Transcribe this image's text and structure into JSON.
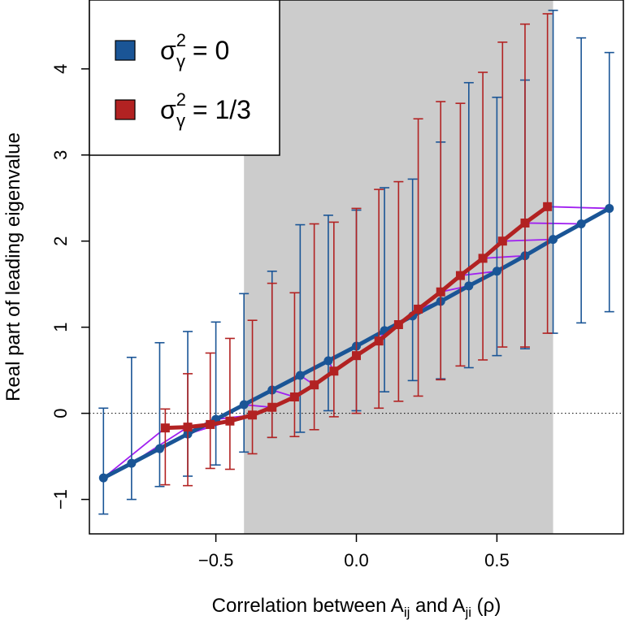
{
  "chart_data": {
    "type": "line",
    "xlabel": {
      "prefix": "Correlation between A",
      "sub1": "ij",
      "mid": " and A",
      "sub2": "ji",
      "suffix": " (ρ)"
    },
    "ylabel": "Real part of leading eigenvalue",
    "xlim": [
      -0.95,
      0.95
    ],
    "ylim": [
      -1.4,
      4.8
    ],
    "x_ticks": [
      -0.5,
      0.0,
      0.5
    ],
    "x_tick_labels": [
      "−0.5",
      "0.0",
      "0.5"
    ],
    "y_ticks": [
      -1,
      0,
      1,
      2,
      3,
      4
    ],
    "y_tick_labels": [
      "−1",
      "0",
      "1",
      "2",
      "3",
      "4"
    ],
    "shaded_region": {
      "x_range": [
        -0.4,
        0.7
      ],
      "color": "#cccccc"
    },
    "reference_line": {
      "y": 0,
      "style": "dotted"
    },
    "grid": false,
    "legend_position": "top-left",
    "connector_color": "#a020f0",
    "series": [
      {
        "name_base": "σ",
        "name_sup": "2",
        "name_sub": "γ",
        "name_rest": " = 0",
        "color": "#1a5596",
        "marker": "circle",
        "x": [
          -0.9,
          -0.8,
          -0.7,
          -0.6,
          -0.5,
          -0.4,
          -0.3,
          -0.2,
          -0.1,
          0.0,
          0.1,
          0.2,
          0.3,
          0.4,
          0.5,
          0.6,
          0.7,
          0.8,
          0.9
        ],
        "y": [
          -0.75,
          -0.58,
          -0.41,
          -0.24,
          -0.07,
          0.1,
          0.27,
          0.44,
          0.61,
          0.78,
          0.96,
          1.13,
          1.3,
          1.48,
          1.65,
          1.83,
          2.02,
          2.2,
          2.38
        ],
        "lower": [
          -1.17,
          -1.0,
          -0.85,
          -0.73,
          -0.6,
          -0.45,
          -0.28,
          -0.22,
          0.03,
          0.03,
          0.25,
          0.38,
          0.4,
          0.53,
          0.67,
          0.75,
          0.93,
          1.05,
          1.18
        ],
        "upper": [
          0.06,
          0.65,
          0.82,
          0.95,
          1.06,
          1.39,
          1.65,
          2.19,
          2.3,
          2.36,
          2.62,
          2.72,
          3.15,
          3.84,
          3.67,
          3.87,
          4.68,
          4.36,
          4.19
        ]
      },
      {
        "name_base": "σ",
        "name_sup": "2",
        "name_sub": "γ",
        "name_rest": " = 1/3",
        "color": "#b22222",
        "marker": "square",
        "x": [
          -0.68,
          -0.6,
          -0.52,
          -0.45,
          -0.37,
          -0.3,
          -0.22,
          -0.15,
          -0.08,
          0.0,
          0.08,
          0.15,
          0.22,
          0.3,
          0.37,
          0.45,
          0.52,
          0.6,
          0.68
        ],
        "y": [
          -0.17,
          -0.16,
          -0.13,
          -0.09,
          -0.02,
          0.07,
          0.19,
          0.33,
          0.49,
          0.67,
          0.84,
          1.03,
          1.21,
          1.41,
          1.6,
          1.8,
          2.0,
          2.21,
          2.4
        ],
        "lower": [
          -0.83,
          -0.84,
          -0.64,
          -0.65,
          -0.47,
          -0.28,
          -0.27,
          -0.19,
          -0.04,
          0.0,
          0.06,
          0.14,
          0.2,
          0.39,
          0.55,
          0.62,
          0.77,
          0.77,
          0.93
        ],
        "upper": [
          0.05,
          0.46,
          0.7,
          0.87,
          1.08,
          1.51,
          1.4,
          2.2,
          2.22,
          2.38,
          2.6,
          2.69,
          3.42,
          3.62,
          3.6,
          3.96,
          4.31,
          4.52,
          4.64
        ]
      }
    ]
  }
}
